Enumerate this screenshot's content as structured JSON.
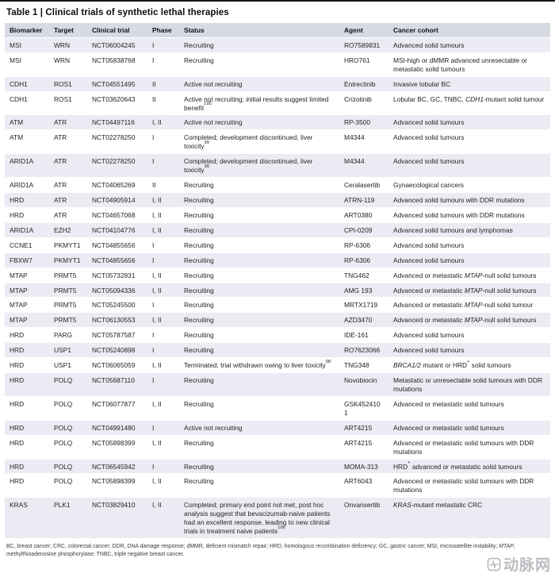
{
  "colors": {
    "top_rule": "#15151c",
    "header_bg": "#d8dae3",
    "row_shaded": "#ebecf3",
    "row_plain": "#ffffff",
    "text": "#1f1f24",
    "footnote_text": "#3a3a40",
    "watermark": "#b0b1b6"
  },
  "table": {
    "title": "Table 1 | Clinical trials of synthetic lethal therapies",
    "columns": [
      "Biomarker",
      "Target",
      "Clinical trial",
      "Phase",
      "Status",
      "Agent",
      "Cancer cohort"
    ],
    "rows": [
      {
        "biomarker": "MSI",
        "target": "WRN",
        "trial": "NCT06004245",
        "phase": "I",
        "status": "Recruiting",
        "agent": "RO7589831",
        "cohort": "Advanced solid tumours"
      },
      {
        "biomarker": "MSI",
        "target": "WRN",
        "trial": "NCT05838768",
        "phase": "I",
        "status": "Recruiting",
        "agent": "HRO761",
        "cohort": "MSI-high or dMMR advanced unresectable or metastatic solid tumours"
      },
      {
        "biomarker": "CDH1",
        "target": "ROS1",
        "trial": "NCT04551495",
        "phase": "II",
        "status": "Active not recruiting",
        "agent": "Entrectinib",
        "cohort": "Invasive lobular BC"
      },
      {
        "biomarker": "CDH1",
        "target": "ROS1",
        "trial": "NCT03620643",
        "phase": "II",
        "status": "Active not recruiting; initial results suggest limited benefit^195^",
        "agent": "Crizotinib",
        "cohort": "Lobular BC, GC, TNBC, *CDH1*-mutant solid tumour"
      },
      {
        "biomarker": "ATM",
        "target": "ATR",
        "trial": "NCT04497116",
        "phase": "I, II",
        "status": "Active not recruiting",
        "agent": "RP-3500",
        "cohort": "Advanced solid tumours"
      },
      {
        "biomarker": "ATM",
        "target": "ATR",
        "trial": "NCT02278250",
        "phase": "I",
        "status": "Completed; development discontinued, liver toxicity^99^",
        "agent": "M4344",
        "cohort": "Advanced solid tumours"
      },
      {
        "biomarker": "ARID1A",
        "target": "ATR",
        "trial": "NCT02278250",
        "phase": "I",
        "status": "Completed; development discontinued, liver toxicity^99^",
        "agent": "M4344",
        "cohort": "Advanced solid tumours"
      },
      {
        "biomarker": "ARID1A",
        "target": "ATR",
        "trial": "NCT04065269",
        "phase": "II",
        "status": "Recruiting",
        "agent": "Ceralasertib",
        "cohort": "Gynaecological cancers"
      },
      {
        "biomarker": "HRD",
        "target": "ATR",
        "trial": "NCT04905914",
        "phase": "I, II",
        "status": "Recruiting",
        "agent": "ATRN-119",
        "cohort": "Advanced solid tumours with DDR mutations"
      },
      {
        "biomarker": "HRD",
        "target": "ATR",
        "trial": "NCT04657068",
        "phase": "I, II",
        "status": "Recruiting",
        "agent": "ART0380",
        "cohort": "Advanced solid tumours with DDR mutations"
      },
      {
        "biomarker": "ARID1A",
        "target": "EZH2",
        "trial": "NCT04104776",
        "phase": "I, II",
        "status": "Recruiting",
        "agent": "CPI-0209",
        "cohort": "Advanced solid tumours and lymphomas"
      },
      {
        "biomarker": "CCNE1",
        "target": "PKMYT1",
        "trial": "NCT04855656",
        "phase": "I",
        "status": "Recruiting",
        "agent": "RP-6306",
        "cohort": "Advanced solid tumours"
      },
      {
        "biomarker": "FBXW7",
        "target": "PKMYT1",
        "trial": "NCT04855656",
        "phase": "I",
        "status": "Recruiting",
        "agent": "RP-6306",
        "cohort": "Advanced solid tumours"
      },
      {
        "biomarker": "MTAP",
        "target": "PRMT5",
        "trial": "NCT05732831",
        "phase": "I, II",
        "status": "Recruiting",
        "agent": "TNG462",
        "cohort": "Advanced or metastatic *MTAP*-null solid tumours"
      },
      {
        "biomarker": "MTAP",
        "target": "PRMT5",
        "trial": "NCT05094336",
        "phase": "I, II",
        "status": "Recruiting",
        "agent": "AMG 193",
        "cohort": "Advanced or metastatic *MTAP*-null solid tumours"
      },
      {
        "biomarker": "MTAP",
        "target": "PRMT5",
        "trial": "NCT05245500",
        "phase": "I",
        "status": "Recruiting",
        "agent": "MRTX1719",
        "cohort": "Advanced or metastatic *MTAP*-null solid tumour"
      },
      {
        "biomarker": "MTAP",
        "target": "PRMT5",
        "trial": "NCT06130553",
        "phase": "I, II",
        "status": "Recruiting",
        "agent": "AZD3470",
        "cohort": "Advanced or metastatic *MTAP*-null solid tumours"
      },
      {
        "biomarker": "HRD",
        "target": "PARG",
        "trial": "NCT05787587",
        "phase": "I",
        "status": "Recruiting",
        "agent": "IDE-161",
        "cohort": "Advanced solid tumours"
      },
      {
        "biomarker": "HRD",
        "target": "USP1",
        "trial": "NCT05240898",
        "phase": "I",
        "status": "Recruiting",
        "agent": "RO7623066",
        "cohort": "Advanced solid tumours"
      },
      {
        "biomarker": "HRD",
        "target": "USP1",
        "trial": "NCT06065059",
        "phase": "I, II",
        "status": "Terminated; trial withdrawn owing to liver toxicity^98^",
        "agent": "TNG348",
        "cohort": "*BRCA1/2* mutant or HRD^+^ solid tumours"
      },
      {
        "biomarker": "HRD",
        "target": "POLQ",
        "trial": "NCT05687110",
        "phase": "I",
        "status": "Recruiting",
        "agent": "Novobiocin",
        "cohort": "Metastatic or unresectable solid tumours with DDR mutations"
      },
      {
        "biomarker": "HRD",
        "target": "POLQ",
        "trial": "NCT06077877",
        "phase": "I, II",
        "status": "Recruiting",
        "agent": "GSK4524101",
        "cohort": "Advanced or metastatic solid tumours"
      },
      {
        "biomarker": "HRD",
        "target": "POLQ",
        "trial": "NCT04991480",
        "phase": "I",
        "status": "Active not recruiting",
        "agent": "ART4215",
        "cohort": "Advanced or metastatic solid tumours"
      },
      {
        "biomarker": "HRD",
        "target": "POLQ",
        "trial": "NCT05898399",
        "phase": "I, II",
        "status": "Recruiting",
        "agent": "ART4215",
        "cohort": "Advanced or metastatic solid tumours with DDR mutations"
      },
      {
        "biomarker": "HRD",
        "target": "POLQ",
        "trial": "NCT06545942",
        "phase": "I",
        "status": "Recruiting",
        "agent": "MOMA-313",
        "cohort": "HRD^+^ advanced or metastatic solid tumours"
      },
      {
        "biomarker": "HRD",
        "target": "POLQ",
        "trial": "NCT05898399",
        "phase": "I, II",
        "status": "Recruiting",
        "agent": "ART6043",
        "cohort": "Advanced or metastatic solid tumours with DDR mutations"
      },
      {
        "biomarker": "KRAS",
        "target": "PLK1",
        "trial": "NCT03829410",
        "phase": "I, II",
        "status": "Completed; primary end point not met, post hoc analysis suggest that bevacizumab-naive patients had an excellent response, leading to new clinical trials in treatment naive patients^196^",
        "agent": "Onvansertib",
        "cohort": "*KRAS*-mutant metastatic CRC"
      }
    ],
    "footnote": "BC, breast cancer; CRC, colorectal cancer; DDR, DNA damage response; dMMR, deficient mismatch repair; HRD, homologous recombination deficiency; GC, gastric cancer; MSI, microsatellite instability; *MTAP*, methylthioadenosine phosphorylase; TNBC, triple negative breast cancer."
  },
  "watermark": {
    "text": "动脉网"
  }
}
